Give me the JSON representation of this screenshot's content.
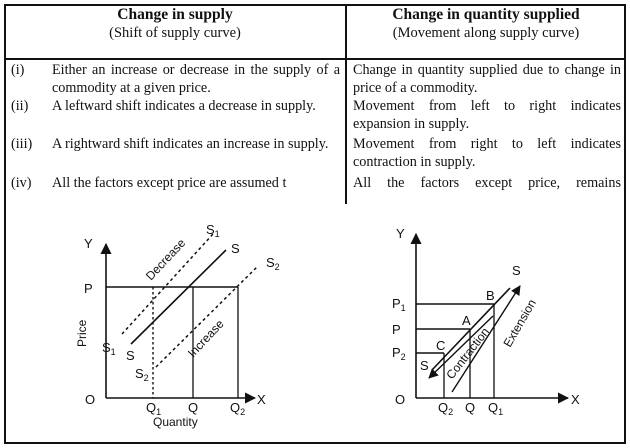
{
  "header": {
    "left_title": "Change in supply",
    "left_sub": "(Shift of supply curve)",
    "right_title": "Change in quantity supplied",
    "right_sub": "(Movement along supply curve)"
  },
  "rows": [
    {
      "num": "(i)",
      "left": "Either an increase or decrease in the supply of a commodity at a given price.",
      "right": "Change in quantity supplied due to change in price of a commodity."
    },
    {
      "num": "(ii)",
      "left": "A leftward shift indicates a decrease in supply.",
      "right": "Movement from left to right indicates expansion in supply."
    },
    {
      "num": "(iii)",
      "left": "A rightward shift indicates an increase in supply.",
      "right": "Movement from right to left indicates contraction in supply."
    },
    {
      "num": "(iv)",
      "left": "All the factors except price are assumed t",
      "right": "All the factors except price, remains"
    }
  ],
  "left_graph": {
    "y_axis": "Y",
    "x_axis": "X",
    "origin": "O",
    "ylabel": "Price",
    "xlabel": "Quantity",
    "p": "P",
    "s1_top": "S",
    "s1_top_sub": "1",
    "s_top": "S",
    "s2_top": "S",
    "s2_top_sub": "2",
    "s1_bottom": "S",
    "s1_bottom_sub": "1",
    "s_bottom": "S",
    "s2_bottom": "S",
    "s2_bottom_sub": "2",
    "decrease": "Decrease",
    "increase": "Increase",
    "q1": "Q",
    "q1_sub": "1",
    "q": "Q",
    "q2": "Q",
    "q2_sub": "2"
  },
  "right_graph": {
    "y_axis": "Y",
    "x_axis": "X",
    "origin": "O",
    "p1": "P",
    "p1_sub": "1",
    "p": "P",
    "p2": "P",
    "p2_sub": "2",
    "a": "A",
    "b": "B",
    "c": "C",
    "s_top": "S",
    "s_bottom": "S",
    "contraction": "Contraction",
    "extension": "Extension",
    "q2": "Q",
    "q2_sub": "2",
    "q": "Q",
    "q1": "Q",
    "q1_sub": "1"
  }
}
